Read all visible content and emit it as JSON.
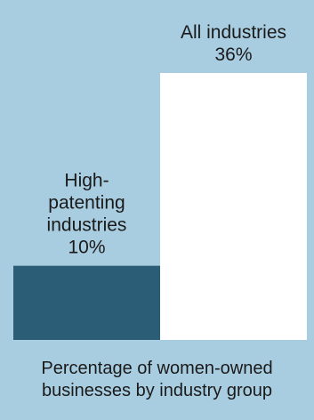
{
  "chart_data": {
    "type": "bar",
    "categories": [
      "High-patenting industries",
      "All industries"
    ],
    "category_label_lines": [
      [
        "High-",
        "patenting",
        "industries"
      ],
      [
        "All industries"
      ]
    ],
    "values": [
      10,
      36
    ],
    "value_labels": [
      "10%",
      "36%"
    ],
    "ylim": [
      0,
      36
    ],
    "colors": [
      "#2c5d77",
      "#ffffff"
    ],
    "background": "#a9cde0",
    "caption_lines": [
      "Percentage of women-owned",
      "businesses by industry group"
    ]
  }
}
